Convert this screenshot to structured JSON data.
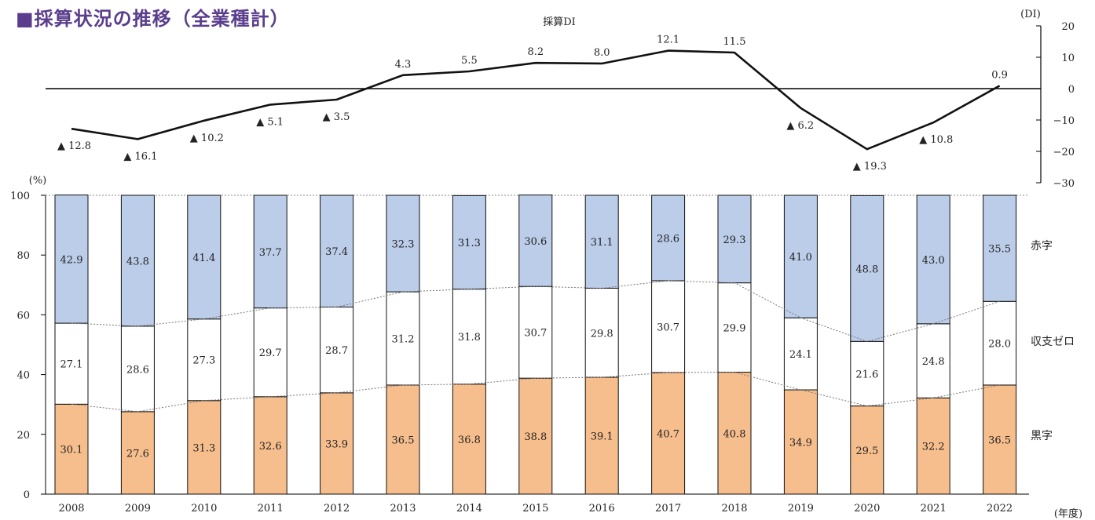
{
  "title": "■採算状況の推移（全業種計）",
  "chart_data": [
    {
      "type": "line",
      "title": "採算DI",
      "unit": "(DI)",
      "x": [
        "2008",
        "2009",
        "2010",
        "2011",
        "2012",
        "2013",
        "2014",
        "2015",
        "2016",
        "2017",
        "2018",
        "2019",
        "2020",
        "2021",
        "2022"
      ],
      "values": [
        -12.8,
        -16.1,
        -10.2,
        -5.1,
        -3.5,
        4.3,
        5.5,
        8.2,
        8.0,
        12.1,
        11.5,
        -6.2,
        -19.3,
        -10.8,
        0.9
      ],
      "point_labels": [
        "▲ 12.8",
        "▲ 16.1",
        "▲ 10.2",
        "▲ 5.1",
        "▲ 3.5",
        "4.3",
        "5.5",
        "8.2",
        "8.0",
        "12.1",
        "11.5",
        "▲ 6.2",
        "▲ 19.3",
        "▲ 10.8",
        "0.9"
      ],
      "ylim": [
        -30,
        20
      ],
      "yticks": [
        "20",
        "10",
        "0",
        "−10",
        "−20",
        "−30"
      ],
      "zero_line": true,
      "color": "#111111"
    },
    {
      "type": "bar",
      "stacked": true,
      "categories": [
        "2008",
        "2009",
        "2010",
        "2011",
        "2012",
        "2013",
        "2014",
        "2015",
        "2016",
        "2017",
        "2018",
        "2019",
        "2020",
        "2021",
        "2022"
      ],
      "x_unit": "(年度)",
      "y_unit": "(%)",
      "ylim": [
        0,
        100
      ],
      "yticks": [
        "0",
        "20",
        "40",
        "60",
        "80",
        "100"
      ],
      "series": [
        {
          "name": "黒字",
          "color": "#f7be8d",
          "values": [
            30.1,
            27.6,
            31.3,
            32.6,
            33.9,
            36.5,
            36.8,
            38.8,
            39.1,
            40.7,
            40.8,
            34.9,
            29.5,
            32.2,
            36.5
          ]
        },
        {
          "name": "収支ゼロ",
          "color": "#ffffff",
          "values": [
            27.1,
            28.6,
            27.3,
            29.7,
            28.7,
            31.2,
            31.8,
            30.7,
            29.8,
            30.7,
            29.9,
            24.1,
            21.6,
            24.8,
            28.0
          ]
        },
        {
          "name": "赤字",
          "color": "#bccde9",
          "values": [
            42.9,
            43.8,
            41.4,
            37.7,
            37.4,
            32.3,
            31.3,
            30.6,
            31.1,
            28.6,
            29.3,
            41.0,
            48.8,
            43.0,
            35.5
          ]
        }
      ]
    }
  ]
}
